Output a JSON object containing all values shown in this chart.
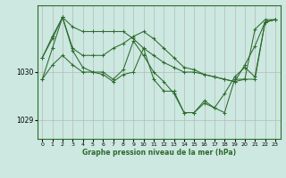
{
  "xlabel": "Graphe pression niveau de la mer (hPa)",
  "bg_color": "#cce8e0",
  "grid_color": "#b0b0b0",
  "line_color": "#2d6a2d",
  "xlim": [
    -0.5,
    23.5
  ],
  "ylim": [
    1028.6,
    1031.4
  ],
  "yticks": [
    1029,
    1030
  ],
  "xticks": [
    0,
    1,
    2,
    3,
    4,
    5,
    6,
    7,
    8,
    9,
    10,
    11,
    12,
    13,
    14,
    15,
    16,
    17,
    18,
    19,
    20,
    21,
    22,
    23
  ],
  "series": [
    [
      1029.85,
      1030.5,
      1031.15,
      1030.95,
      1030.85,
      1030.85,
      1030.85,
      1030.85,
      1030.85,
      1030.7,
      1030.5,
      1030.35,
      1030.2,
      1030.1,
      1030.0,
      1030.0,
      1029.95,
      1029.9,
      1029.85,
      1029.8,
      1029.85,
      1030.9,
      1031.1,
      1031.1
    ],
    [
      1030.3,
      1030.7,
      1031.15,
      1030.5,
      1030.35,
      1030.35,
      1030.35,
      1030.5,
      1030.6,
      1030.75,
      1030.85,
      1030.7,
      1030.5,
      1030.3,
      1030.1,
      1030.05,
      1029.95,
      1029.9,
      1029.85,
      1029.8,
      1030.15,
      1030.55,
      1031.05,
      1031.1
    ],
    [
      1030.3,
      1030.75,
      1031.15,
      1030.45,
      1030.1,
      1030.0,
      1029.95,
      1029.8,
      1029.95,
      1030.0,
      1030.5,
      1029.85,
      1029.6,
      1029.6,
      1029.15,
      1029.15,
      1029.4,
      1029.25,
      1029.55,
      1029.9,
      1030.1,
      1029.9,
      1031.05,
      1031.1
    ],
    [
      1029.85,
      1030.15,
      1030.35,
      1030.15,
      1030.0,
      1030.0,
      1030.0,
      1029.85,
      1030.05,
      1030.65,
      1030.35,
      1030.0,
      1029.8,
      1029.55,
      1029.15,
      1029.15,
      1029.35,
      1029.25,
      1029.15,
      1029.85,
      1029.85,
      1029.85,
      1031.05,
      1031.1
    ]
  ]
}
